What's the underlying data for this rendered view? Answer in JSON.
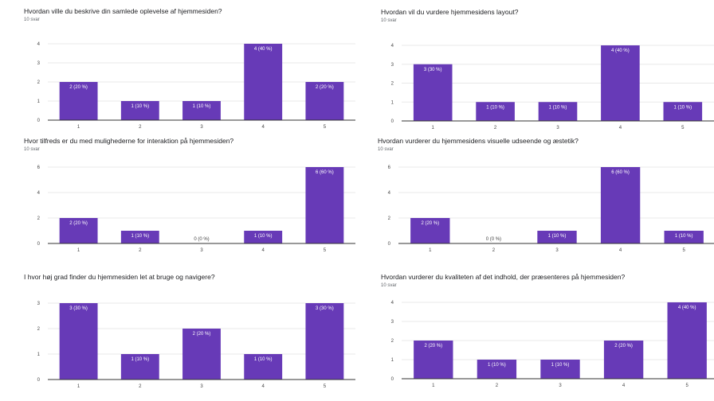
{
  "chart_data": [
    {
      "type": "bar",
      "title": "Hvordan ville du beskrive din samlede oplevelse af hjemmesiden?",
      "subtitle": "10 svar",
      "categories": [
        "1",
        "2",
        "3",
        "4",
        "5"
      ],
      "values": [
        2,
        1,
        1,
        4,
        2
      ],
      "data_labels": [
        "2 (20 %)",
        "1 (10 %)",
        "1 (10 %)",
        "4 (40 %)",
        "2 (20 %)"
      ],
      "yticks": [
        0,
        1,
        2,
        3,
        4
      ],
      "ylim": [
        0,
        4
      ],
      "grid": true
    },
    {
      "type": "bar",
      "title": "Hvordan vil du vurdere hjemmesidens layout?",
      "subtitle": "10 svar",
      "categories": [
        "1",
        "2",
        "3",
        "4",
        "5"
      ],
      "values": [
        3,
        1,
        1,
        4,
        1
      ],
      "data_labels": [
        "3 (30 %)",
        "1 (10 %)",
        "1 (10 %)",
        "4 (40 %)",
        "1 (10 %)"
      ],
      "yticks": [
        0,
        1,
        2,
        3,
        4
      ],
      "ylim": [
        0,
        4
      ],
      "grid": true
    },
    {
      "type": "bar",
      "title": "Hvor tilfreds er du med mulighederne for interaktion på hjemmesiden?",
      "subtitle": "10 svar",
      "categories": [
        "1",
        "2",
        "3",
        "4",
        "5"
      ],
      "values": [
        2,
        1,
        0,
        1,
        6
      ],
      "data_labels": [
        "2 (20 %)",
        "1 (10 %)",
        "0 (0 %)",
        "1 (10 %)",
        "6 (60 %)"
      ],
      "yticks": [
        0,
        2,
        4,
        6
      ],
      "ylim": [
        0,
        6
      ],
      "grid": true
    },
    {
      "type": "bar",
      "title": "Hvordan vurderer du hjemmesidens visuelle udseende og æstetik?",
      "subtitle": "10 svar",
      "categories": [
        "1",
        "2",
        "3",
        "4",
        "5"
      ],
      "values": [
        2,
        0,
        1,
        6,
        1
      ],
      "data_labels": [
        "2 (20 %)",
        "0 (0 %)",
        "1 (10 %)",
        "6 (60 %)",
        "1 (10 %)"
      ],
      "yticks": [
        0,
        2,
        4,
        6
      ],
      "ylim": [
        0,
        6
      ],
      "grid": true
    },
    {
      "type": "bar",
      "title": "I hvor høj grad finder du hjemmesiden let at bruge og navigere?",
      "subtitle": "",
      "categories": [
        "1",
        "2",
        "3",
        "4",
        "5"
      ],
      "values": [
        3,
        1,
        2,
        1,
        3
      ],
      "data_labels": [
        "3 (30 %)",
        "1 (10 %)",
        "2 (20 %)",
        "1 (10 %)",
        "3 (30 %)"
      ],
      "yticks": [
        0,
        1,
        2,
        3
      ],
      "ylim": [
        0,
        3
      ],
      "grid": true
    },
    {
      "type": "bar",
      "title": "Hvordan vurderer du kvaliteten af det indhold, der præsenteres på hjemmesiden?",
      "subtitle": "10 svar",
      "categories": [
        "1",
        "2",
        "3",
        "4",
        "5"
      ],
      "values": [
        2,
        1,
        1,
        2,
        4
      ],
      "data_labels": [
        "2 (20 %)",
        "1 (10 %)",
        "1 (10 %)",
        "2 (20 %)",
        "4 (40 %)"
      ],
      "yticks": [
        0,
        1,
        2,
        3,
        4
      ],
      "ylim": [
        0,
        4
      ],
      "grid": true
    }
  ],
  "colors": {
    "bar": "#673ab7",
    "grid": "#e8e8e8",
    "axis": "#333333",
    "tick_text": "#444444",
    "label_text": "#ffffff",
    "label_text_outside": "#444444"
  }
}
